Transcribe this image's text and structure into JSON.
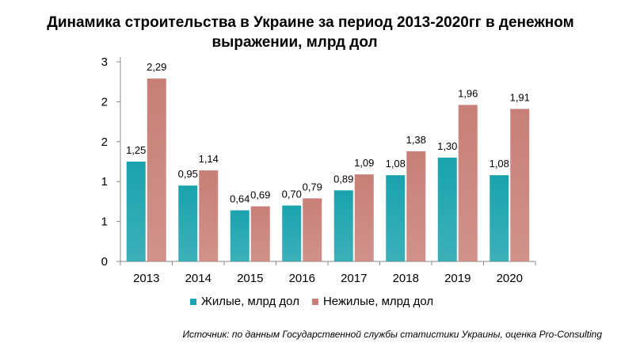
{
  "chart_data": {
    "type": "bar",
    "title_line1": "Динамика строительства в Украине за период 2013-2020гг в денежном",
    "title_line2": "выражении, млрд дол",
    "categories": [
      "2013",
      "2014",
      "2015",
      "2016",
      "2017",
      "2018",
      "2019",
      "2020"
    ],
    "series": [
      {
        "name": "Жилые,  млрд дол",
        "color": "#1aa3ad",
        "values": [
          1.25,
          0.95,
          0.64,
          0.7,
          0.89,
          1.08,
          1.3,
          1.08
        ],
        "labels": [
          "1,25",
          "0,95",
          "0,64",
          "0,70",
          "0,89",
          "1,08",
          "1,30",
          "1,08"
        ]
      },
      {
        "name": "Нежилые,  млрд дол",
        "color": "#c87f77",
        "values": [
          2.29,
          1.14,
          0.69,
          0.79,
          1.09,
          1.38,
          1.96,
          1.91
        ],
        "labels": [
          "2,29",
          "1,14",
          "0,69",
          "0,79",
          "1,09",
          "1,38",
          "1,96",
          "1,91"
        ]
      }
    ],
    "ylim": [
      0,
      2.5
    ],
    "y_ticks": [
      0,
      0.5,
      1,
      1.5,
      2,
      2.5
    ],
    "y_tick_labels": [
      "0",
      "1",
      "1",
      "2",
      "2",
      "3"
    ],
    "xlabel": "",
    "ylabel": "",
    "grid": false,
    "legend_position": "bottom"
  },
  "source": "Источник: по данным Государственной службы статистики Украины, оценка Pro-Consulting"
}
